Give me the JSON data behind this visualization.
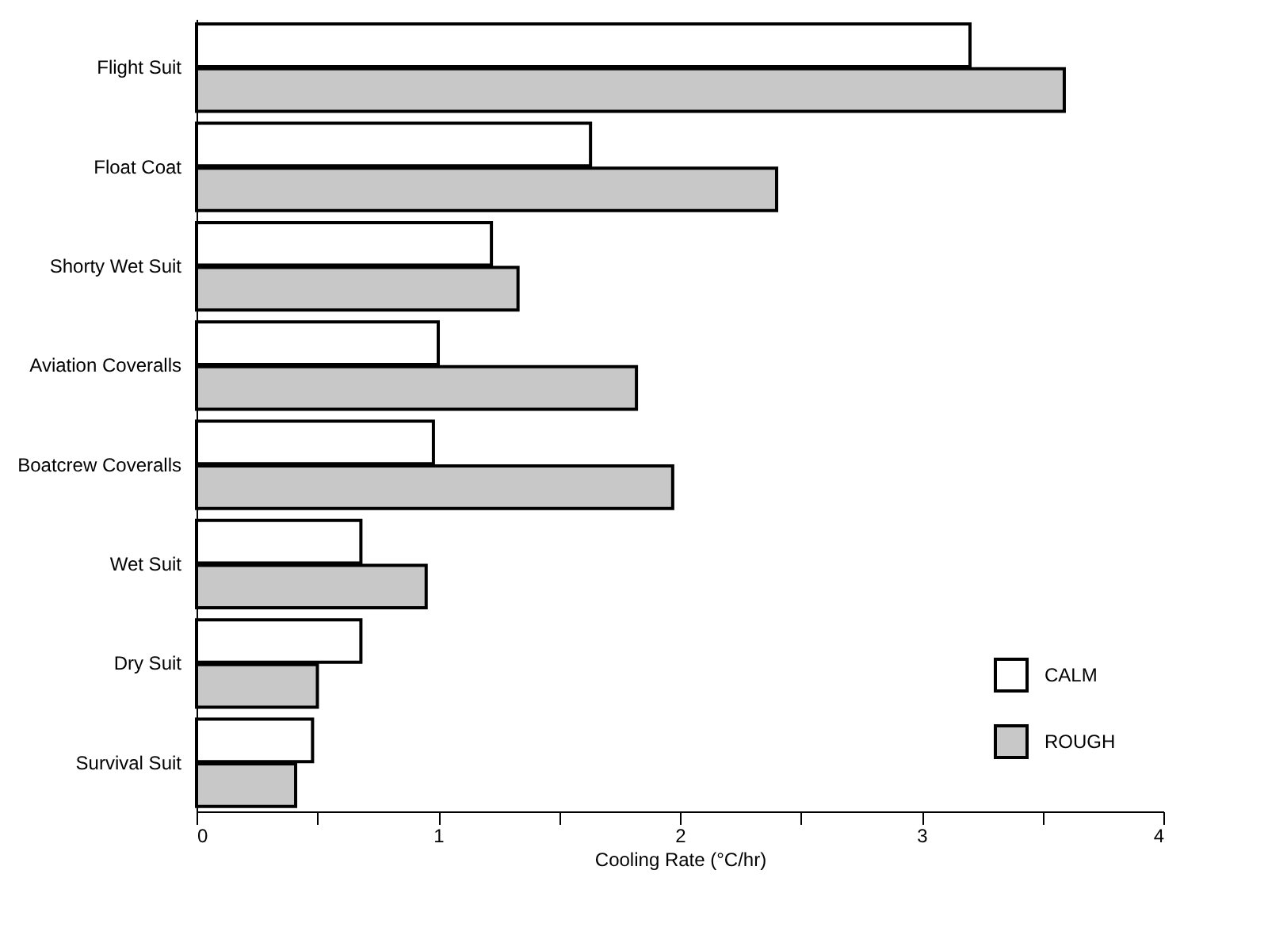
{
  "chart_data": {
    "type": "bar",
    "orientation": "horizontal",
    "xlabel": "Cooling Rate (°C/hr)",
    "categories": [
      "Flight Suit",
      "Float Coat",
      "Shorty Wet Suit",
      "Aviation Coveralls",
      "Boatcrew Coveralls",
      "Wet Suit",
      "Dry Suit",
      "Survival Suit"
    ],
    "series": [
      {
        "name": "CALM",
        "color": "#ffffff",
        "values": [
          3.2,
          1.63,
          1.22,
          1.0,
          0.98,
          0.68,
          0.68,
          0.48
        ]
      },
      {
        "name": "ROUGH",
        "color": "#c8c8c8",
        "values": [
          3.59,
          2.4,
          1.33,
          1.82,
          1.97,
          0.95,
          0.5,
          0.41
        ]
      }
    ],
    "xlim": [
      0,
      4
    ],
    "xticks": [
      0,
      {
        "value": 0.5,
        "label": null
      },
      1,
      {
        "value": 1.5,
        "label": null
      },
      2,
      {
        "value": 2.5,
        "label": null
      },
      3,
      {
        "value": 3.5,
        "label": null
      },
      4
    ],
    "grid": false,
    "legend": "bottom right"
  }
}
